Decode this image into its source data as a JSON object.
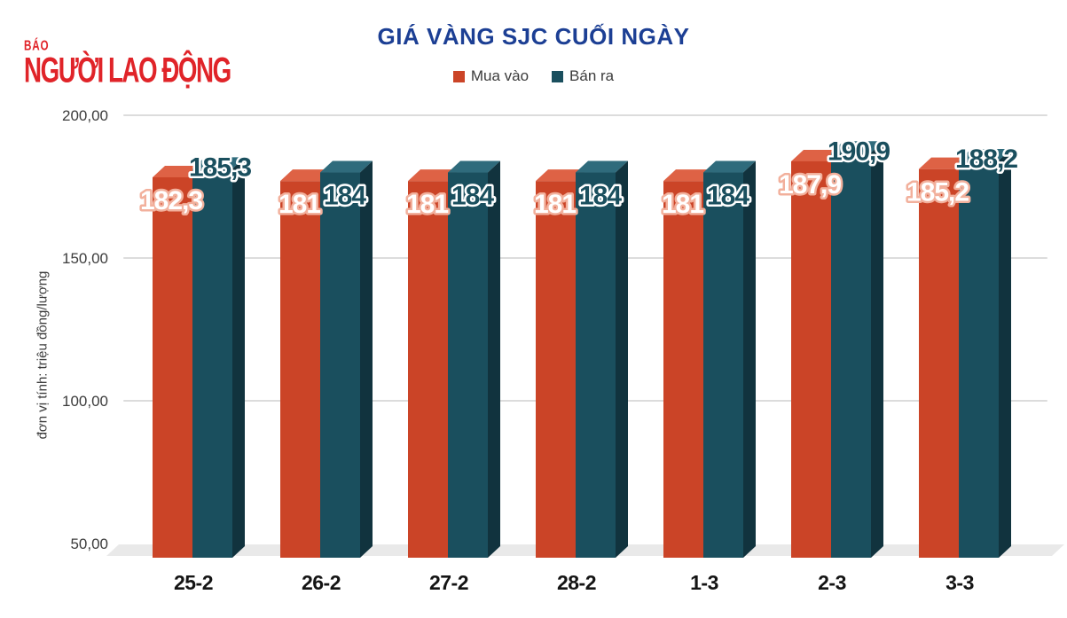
{
  "logo": {
    "top": "BÁO",
    "main": "NGƯỜI LAO ĐỘNG",
    "color": "#e02429"
  },
  "chart_data": {
    "type": "bar",
    "title": "GIÁ VÀNG SJC CUỐI NGÀY",
    "title_color": "#1c3f94",
    "ylabel": "đơn vị tính: triệu đồng/lượng",
    "xlabel": "",
    "categories": [
      "25-2",
      "26-2",
      "27-2",
      "28-2",
      "1-3",
      "2-3",
      "3-3"
    ],
    "series": [
      {
        "name": "Mua vào",
        "color": "#cb4427",
        "top_color": "#de6245",
        "label_text_color": "#ffffff",
        "label_outline_color": "#f2b09c",
        "values": [
          182.3,
          181,
          181,
          181,
          181,
          187.9,
          185.2
        ],
        "labels": [
          "182,3",
          "181",
          "181",
          "181",
          "181",
          "187,9",
          "185,2"
        ]
      },
      {
        "name": "Bán ra",
        "color": "#1a4f5e",
        "top_color": "#2f6b7c",
        "side_color": "#11333e",
        "label_text_color": "#1a4f5e",
        "label_outline_color": "#ffffff",
        "values": [
          185.3,
          184,
          184,
          184,
          184,
          190.9,
          188.2
        ],
        "labels": [
          "185,3",
          "184",
          "184",
          "184",
          "184",
          "190,9",
          "188,2"
        ]
      }
    ],
    "yticks": [
      {
        "label": "200,00",
        "value": 200
      },
      {
        "label": "150,00",
        "value": 150
      },
      {
        "label": "100,00",
        "value": 100
      },
      {
        "label": "50,00",
        "value": 50
      }
    ],
    "ylim": [
      50,
      200
    ],
    "grid": true,
    "gridline_color": "#dcdcdc",
    "floor_color": "#e9e9e9",
    "legend_position": "top"
  }
}
